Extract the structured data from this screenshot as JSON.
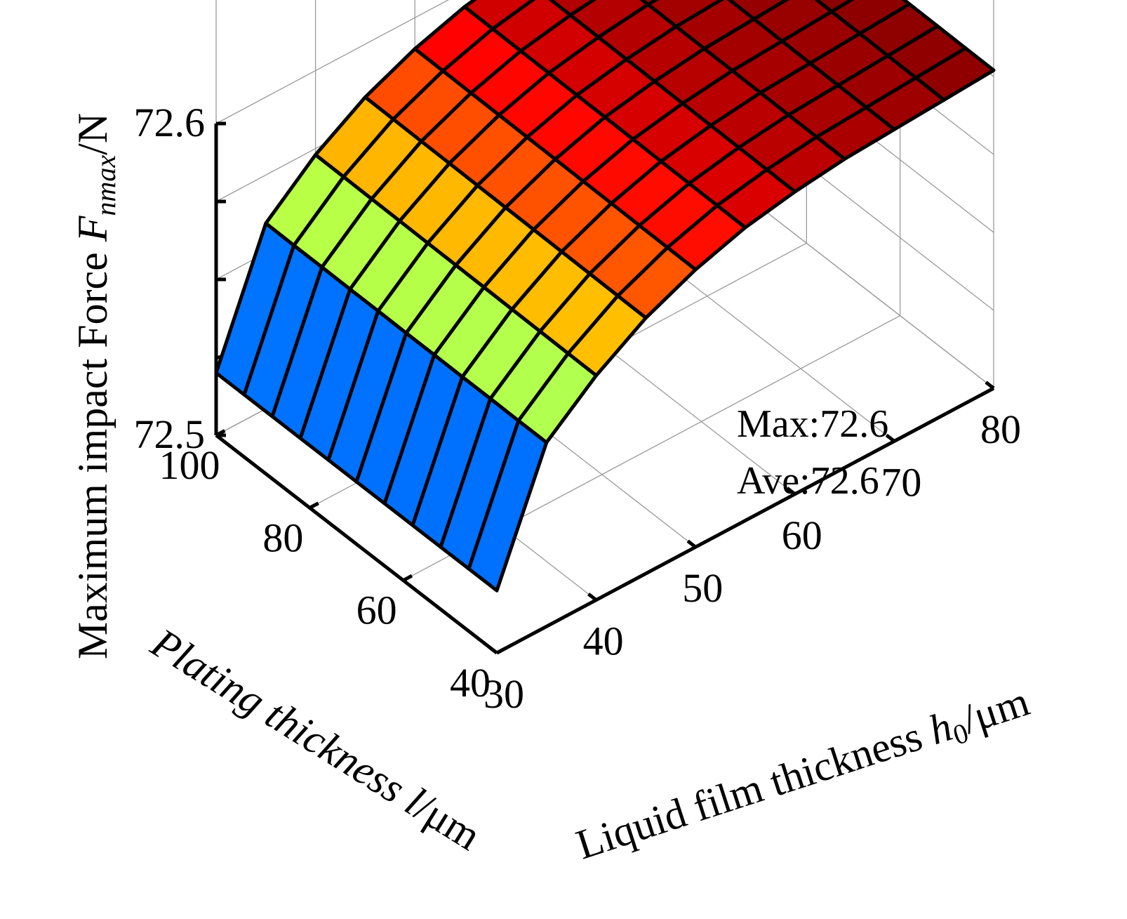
{
  "chart_data": {
    "type": "surface3d",
    "title": "",
    "xlabel": "Plating thickness l/μm",
    "xlabel_parts": {
      "text": "Plating thickness ",
      "var": "l",
      "unit": "/μm"
    },
    "ylabel": "Liquid film thickness h0/μm",
    "ylabel_parts": {
      "text": "Liquid film thickness ",
      "var": "h",
      "sub": "0",
      "unit": "/μm"
    },
    "zlabel": "Maximum impact Force Fnmax/N",
    "zlabel_parts": {
      "text": "Maximum impact Force ",
      "var": "F",
      "sub": "nmax",
      "unit": "/N"
    },
    "x_ticks": [
      "40",
      "60",
      "80",
      "100"
    ],
    "y_ticks": [
      "30",
      "40",
      "50",
      "60",
      "70",
      "80"
    ],
    "z_ticks": [
      "72.5",
      "72.6"
    ],
    "xlim": [
      40,
      100
    ],
    "ylim": [
      30,
      80
    ],
    "zlim": [
      72.5,
      72.6
    ],
    "x": [
      40,
      46,
      52,
      58,
      64,
      70,
      76,
      82,
      88,
      94,
      100
    ],
    "y": [
      30,
      35,
      40,
      45,
      50,
      55,
      60,
      65,
      70,
      75,
      80
    ],
    "z_rows": [
      [
        72.52,
        72.52,
        72.52,
        72.52,
        72.52,
        72.52,
        72.52,
        72.52,
        72.52,
        72.52,
        72.52
      ],
      [
        72.559,
        72.559,
        72.5591,
        72.5591,
        72.5592,
        72.5592,
        72.5593,
        72.5593,
        72.5594,
        72.5594,
        72.5595
      ],
      [
        72.572,
        72.5721,
        72.5722,
        72.5723,
        72.5724,
        72.5725,
        72.5726,
        72.5727,
        72.5728,
        72.5729,
        72.573
      ],
      [
        72.582,
        72.5821,
        72.5822,
        72.5823,
        72.5824,
        72.5825,
        72.5826,
        72.5827,
        72.5828,
        72.5829,
        72.583
      ],
      [
        72.589,
        72.5891,
        72.5892,
        72.5893,
        72.5894,
        72.5895,
        72.5896,
        72.5897,
        72.5898,
        72.5899,
        72.59
      ],
      [
        72.594,
        72.5941,
        72.5942,
        72.5943,
        72.5944,
        72.5945,
        72.5946,
        72.5947,
        72.5948,
        72.5949,
        72.595
      ],
      [
        72.597,
        72.5971,
        72.5972,
        72.5973,
        72.5974,
        72.5975,
        72.5976,
        72.5977,
        72.5978,
        72.5979,
        72.598
      ],
      [
        72.599,
        72.5991,
        72.5992,
        72.5993,
        72.5994,
        72.5995,
        72.5996,
        72.5997,
        72.5998,
        72.5999,
        72.6
      ],
      [
        72.6,
        72.6001,
        72.6002,
        72.6003,
        72.6004,
        72.6005,
        72.6006,
        72.6007,
        72.6008,
        72.6009,
        72.601
      ],
      [
        72.601,
        72.6011,
        72.6012,
        72.6013,
        72.6014,
        72.6015,
        72.6016,
        72.6017,
        72.6018,
        72.6019,
        72.602
      ],
      [
        72.602,
        72.6021,
        72.6022,
        72.6023,
        72.6024,
        72.6025,
        72.6026,
        72.6027,
        72.6028,
        72.6029,
        72.603
      ]
    ],
    "colormap": "jet",
    "grid": true,
    "annotations": [
      "Max:72.6",
      "Ave:72.6"
    ]
  }
}
